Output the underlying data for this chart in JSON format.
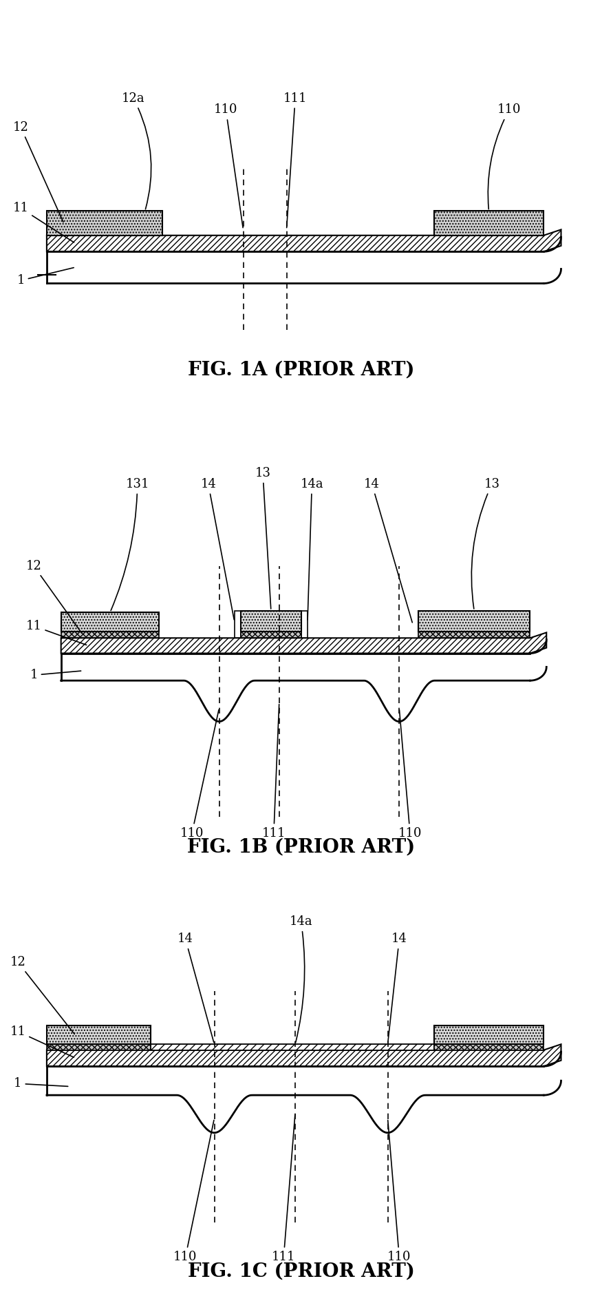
{
  "fig_labels": [
    "FIG. 1A (PRIOR ART)",
    "FIG. 1B (PRIOR ART)",
    "FIG. 1C (PRIOR ART)"
  ],
  "bg_color": "#ffffff",
  "line_color": "#000000",
  "font_size_label": 20,
  "font_size_annot": 13,
  "fig_width": 8.75,
  "fig_height": 19.05
}
